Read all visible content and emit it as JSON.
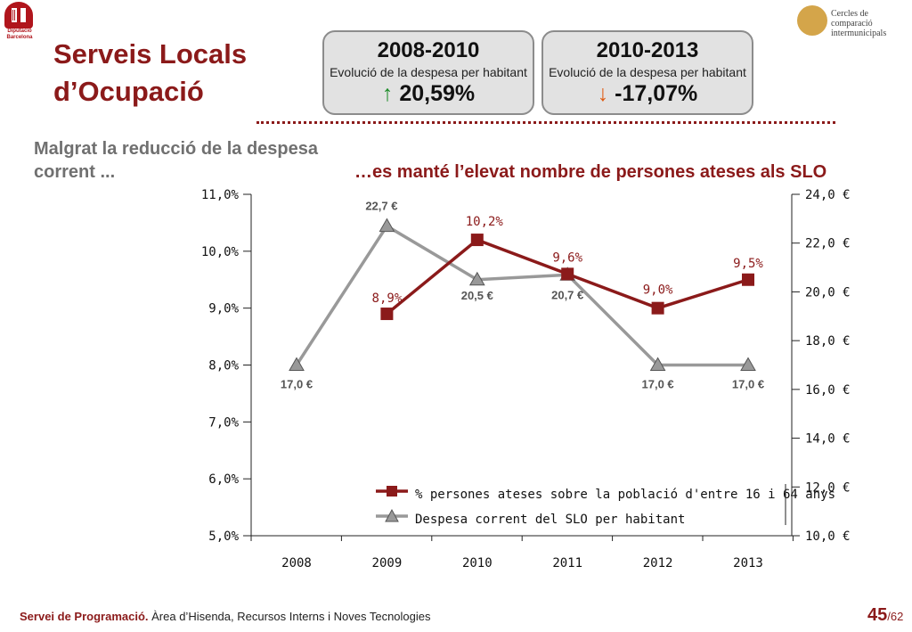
{
  "header": {
    "logo_text": "Diputació Barcelona",
    "title_line1": "Serveis Locals",
    "title_line2": "d’Ocupació",
    "brand_line1": "Cercles de comparació",
    "brand_line2": "intermunicipals"
  },
  "boxes": [
    {
      "period": "2008-2010",
      "subtitle": "Evolució de la despesa per habitant",
      "arrow": "↑",
      "value": "20,59%"
    },
    {
      "period": "2010-2013",
      "subtitle": "Evolució de la despesa per habitant",
      "arrow": "↓",
      "value": "-17,07%"
    }
  ],
  "subtitles": {
    "left": "Malgrat la reducció de la despesa corrent ...",
    "right": "…es manté l’elevat nombre de persones ateses als SLO"
  },
  "chart_data": {
    "type": "line",
    "x": [
      "2008",
      "2009",
      "2010",
      "2011",
      "2012",
      "2013"
    ],
    "series": [
      {
        "name": "% persones ateses sobre la població d'entre 16 i 64 anys",
        "axis": "left",
        "color": "#8b1a1a",
        "marker": "square",
        "values": [
          null,
          8.9,
          10.2,
          9.6,
          9.0,
          9.5
        ],
        "labels": [
          "",
          "8,9%",
          "10,2%",
          "9,6%",
          "9,0%",
          "9,5%"
        ]
      },
      {
        "name": "Despesa corrent del SLO per habitant",
        "axis": "right",
        "color": "#999999",
        "marker": "triangle",
        "values": [
          17.0,
          22.7,
          20.5,
          20.7,
          17.0,
          17.0
        ],
        "labels": [
          "17,0 €",
          "22,7 €",
          "20,5 €",
          "20,7 €",
          "17,0 €",
          "17,0 €"
        ]
      }
    ],
    "y_left": {
      "min": 5,
      "max": 11,
      "ticks": [
        "5,0%",
        "6,0%",
        "7,0%",
        "8,0%",
        "9,0%",
        "10,0%",
        "11,0%"
      ]
    },
    "y_right": {
      "min": 10,
      "max": 24,
      "ticks": [
        "10,0 €",
        "12,0 €",
        "14,0 €",
        "16,0 €",
        "18,0 €",
        "20,0 €",
        "22,0 €",
        "24,0 €"
      ]
    },
    "legend_position": "bottom-center",
    "grid": false
  },
  "footer": {
    "org": "Servei de Programació.",
    "text": " Àrea d’Hisenda, Recursos Interns i Noves Tecnologies",
    "page": "45",
    "total": "/62"
  }
}
